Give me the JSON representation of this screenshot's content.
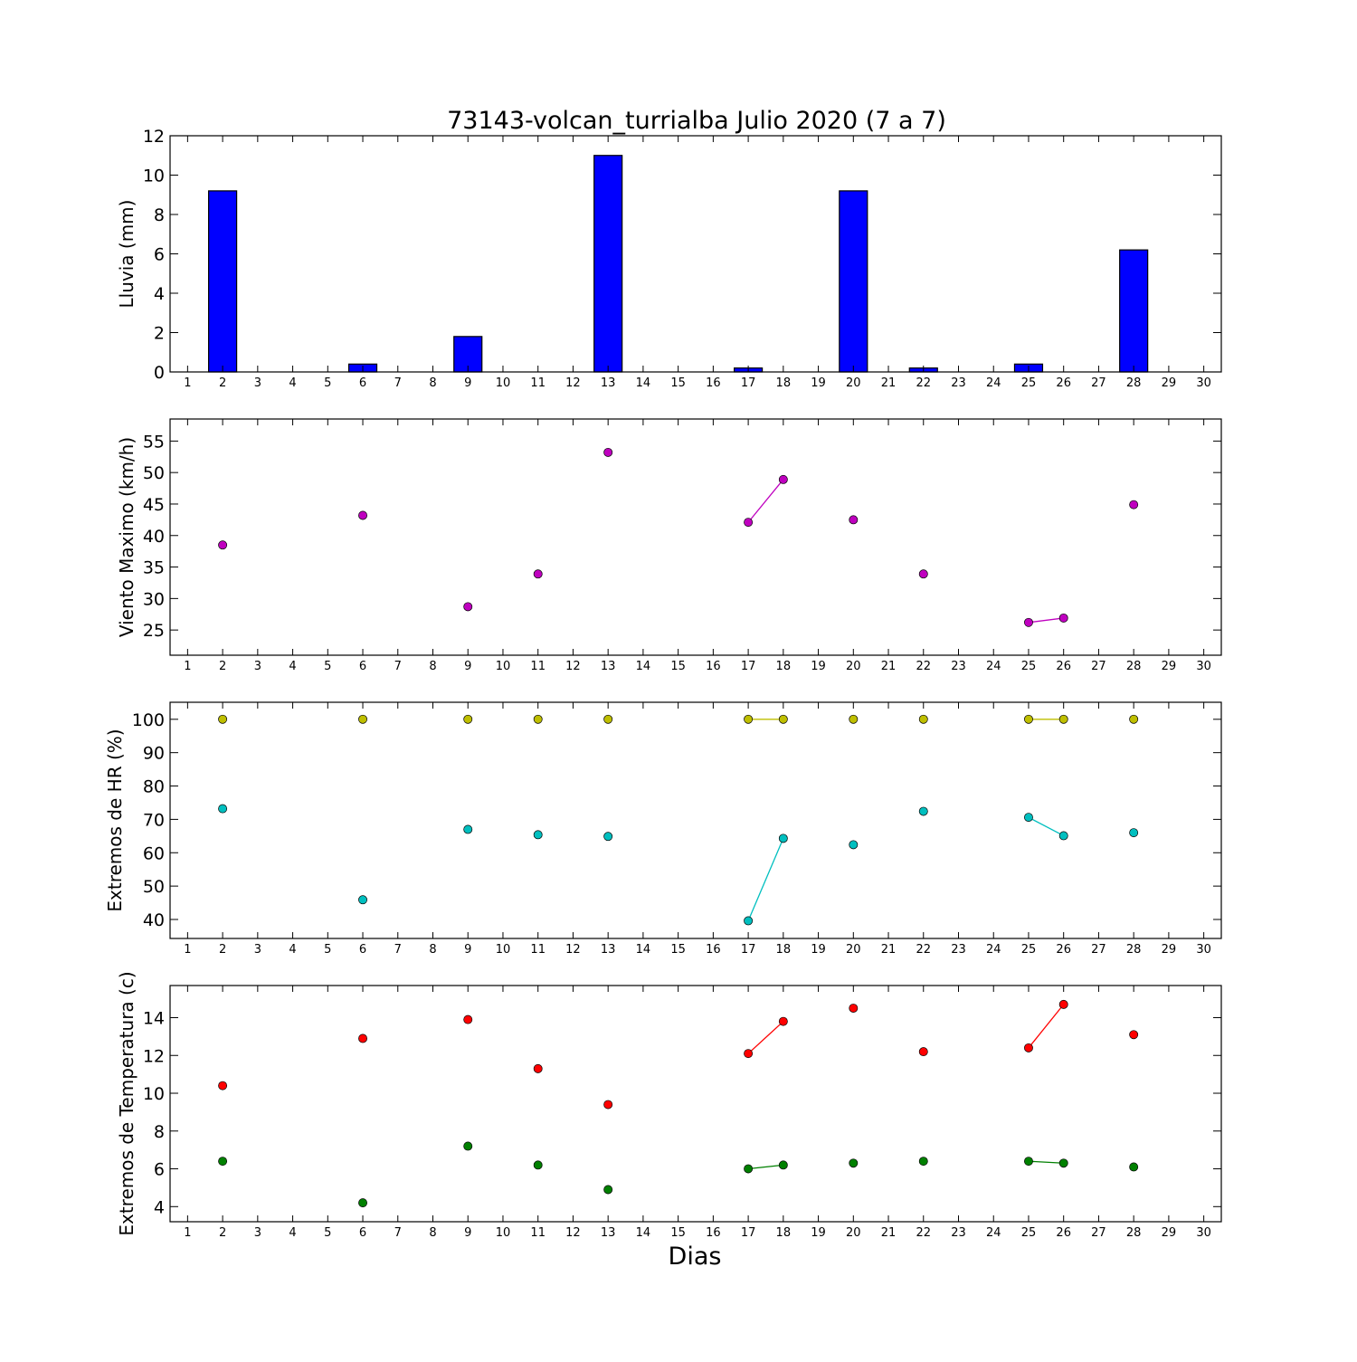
{
  "title": "73143-volcan_turrialba Julio 2020  (7 a 7)",
  "xlabel": "Dias",
  "chart_data": [
    {
      "type": "bar",
      "ylabel": "Lluvia (mm)",
      "xlim": [
        0.5,
        30.5
      ],
      "ylim": [
        0,
        12
      ],
      "yticks": [
        0,
        2,
        4,
        6,
        8,
        10,
        12
      ],
      "xticks": [
        1,
        2,
        3,
        4,
        5,
        6,
        7,
        8,
        9,
        10,
        11,
        12,
        13,
        14,
        15,
        16,
        17,
        18,
        19,
        20,
        21,
        22,
        23,
        24,
        25,
        26,
        27,
        28,
        29,
        30
      ],
      "color": "#0000ff",
      "x": [
        2,
        6,
        9,
        11,
        13,
        17,
        20,
        22,
        25,
        26,
        28
      ],
      "values": [
        9.2,
        0.4,
        1.8,
        0.0,
        11.0,
        0.2,
        9.2,
        0.2,
        0.4,
        0.0,
        6.2
      ]
    },
    {
      "type": "line",
      "ylabel": "Viento Maximo (km/h)",
      "xlim": [
        0.5,
        30.5
      ],
      "ylim": [
        21,
        58.5
      ],
      "yticks": [
        25,
        30,
        35,
        40,
        45,
        50,
        55
      ],
      "xticks": [
        1,
        2,
        3,
        4,
        5,
        6,
        7,
        8,
        9,
        10,
        11,
        12,
        13,
        14,
        15,
        16,
        17,
        18,
        19,
        20,
        21,
        22,
        23,
        24,
        25,
        26,
        27,
        28,
        29,
        30
      ],
      "series": [
        {
          "color": "#bf00bf",
          "x": [
            2,
            6,
            9,
            11,
            13,
            17,
            18,
            20,
            22,
            25,
            26,
            28
          ],
          "y": [
            38.5,
            43.2,
            28.7,
            33.9,
            53.2,
            42.1,
            48.9,
            42.5,
            33.9,
            26.2,
            26.9,
            44.9
          ]
        }
      ]
    },
    {
      "type": "line",
      "ylabel": "Extremos de HR (%)",
      "xlim": [
        0.5,
        30.5
      ],
      "ylim": [
        34.3,
        105.1
      ],
      "yticks": [
        40,
        50,
        60,
        70,
        80,
        90,
        100
      ],
      "xticks": [
        1,
        2,
        3,
        4,
        5,
        6,
        7,
        8,
        9,
        10,
        11,
        12,
        13,
        14,
        15,
        16,
        17,
        18,
        19,
        20,
        21,
        22,
        23,
        24,
        25,
        26,
        27,
        28,
        29,
        30
      ],
      "series": [
        {
          "color": "#bfbf00",
          "x": [
            2,
            6,
            9,
            11,
            13,
            17,
            18,
            20,
            22,
            25,
            26,
            28
          ],
          "y": [
            100,
            100,
            100,
            100,
            100,
            100,
            100,
            100,
            100,
            100,
            100,
            100
          ]
        },
        {
          "color": "#00bfbf",
          "x": [
            2,
            6,
            9,
            11,
            13,
            17,
            18,
            20,
            22,
            25,
            26,
            28
          ],
          "y": [
            73.2,
            45.9,
            67.0,
            65.4,
            64.9,
            39.6,
            64.3,
            62.4,
            72.4,
            70.6,
            65.1,
            66.0
          ]
        }
      ]
    },
    {
      "type": "line",
      "ylabel": "Extremos de Temperatura (c)",
      "xlim": [
        0.5,
        30.5
      ],
      "ylim": [
        3.2,
        15.7
      ],
      "yticks": [
        4,
        6,
        8,
        10,
        12,
        14
      ],
      "xticks": [
        1,
        2,
        3,
        4,
        5,
        6,
        7,
        8,
        9,
        10,
        11,
        12,
        13,
        14,
        15,
        16,
        17,
        18,
        19,
        20,
        21,
        22,
        23,
        24,
        25,
        26,
        27,
        28,
        29,
        30
      ],
      "series": [
        {
          "color": "#ff0000",
          "x": [
            2,
            6,
            9,
            11,
            13,
            17,
            18,
            20,
            22,
            25,
            26,
            28
          ],
          "y": [
            10.4,
            12.9,
            13.9,
            11.3,
            9.4,
            12.1,
            13.8,
            14.5,
            12.2,
            12.4,
            14.7,
            13.1
          ]
        },
        {
          "color": "#008000",
          "x": [
            2,
            6,
            9,
            11,
            13,
            17,
            18,
            20,
            22,
            25,
            26,
            28
          ],
          "y": [
            6.4,
            4.2,
            7.2,
            6.2,
            4.9,
            6.0,
            6.2,
            6.3,
            6.4,
            6.4,
            6.3,
            6.1
          ]
        }
      ]
    }
  ]
}
